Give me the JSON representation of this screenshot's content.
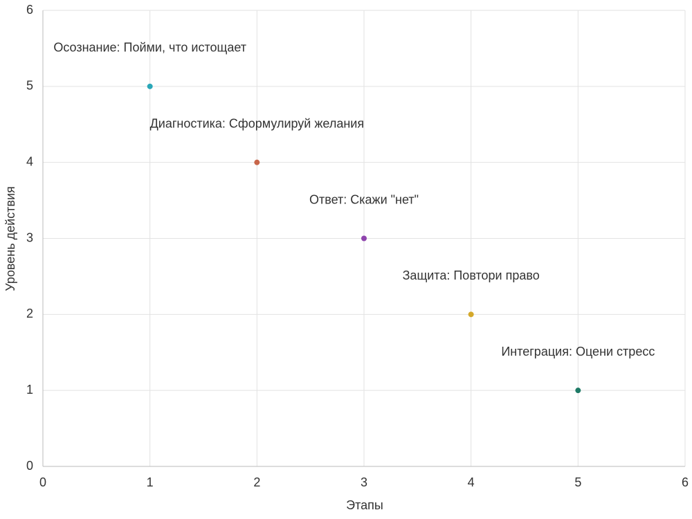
{
  "chart_data": {
    "type": "scatter",
    "xlabel": "Этапы",
    "ylabel": "Уровень действия",
    "x": [
      1,
      2,
      3,
      4,
      5
    ],
    "values": [
      5,
      4,
      3,
      2,
      1
    ],
    "colors": [
      "#2aa7b8",
      "#c8664a",
      "#8e44ad",
      "#d4a82a",
      "#1e7a66"
    ],
    "labels": [
      "Осознание: Пойми, что истощает",
      "Диагностика: Сформулируй желания",
      "Ответ: Скажи \"нет\"",
      "Защита: Повтори право",
      "Интеграция: Оцени стресс"
    ],
    "xlim": [
      0,
      6
    ],
    "ylim": [
      0,
      6
    ],
    "xticks": [
      0,
      1,
      2,
      3,
      4,
      5,
      6
    ],
    "yticks": [
      0,
      1,
      2,
      3,
      4,
      5,
      6
    ],
    "grid": true
  }
}
